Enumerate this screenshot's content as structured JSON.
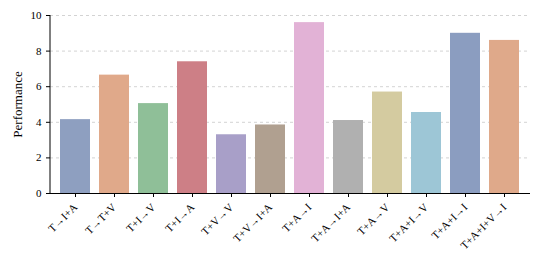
{
  "chart_data": {
    "type": "bar",
    "ylabel": "Performance",
    "categories": [
      "T→I+A",
      "T→T+V",
      "T+I→V",
      "T+I→A",
      "T+V→V",
      "T+V→I+A",
      "T+A→I",
      "T+A→I+A",
      "T+A→V",
      "T+A+I→V",
      "T+A+I→I",
      "T+A+I+V→I"
    ],
    "values": [
      4.15,
      6.65,
      5.05,
      7.4,
      3.3,
      3.85,
      9.6,
      4.1,
      5.7,
      4.55,
      9.0,
      8.6
    ],
    "colors": [
      "#8e9fc0",
      "#e0a98a",
      "#8fbf98",
      "#cd7f86",
      "#a89fc8",
      "#b0a090",
      "#e2b2d6",
      "#b0b0b0",
      "#d4cba0",
      "#9dc6d6",
      "#8b9dc0",
      "#dfa98a"
    ],
    "ylim": [
      0,
      10
    ],
    "yticks": [
      0,
      2,
      4,
      6,
      8,
      10
    ],
    "grid": true
  }
}
